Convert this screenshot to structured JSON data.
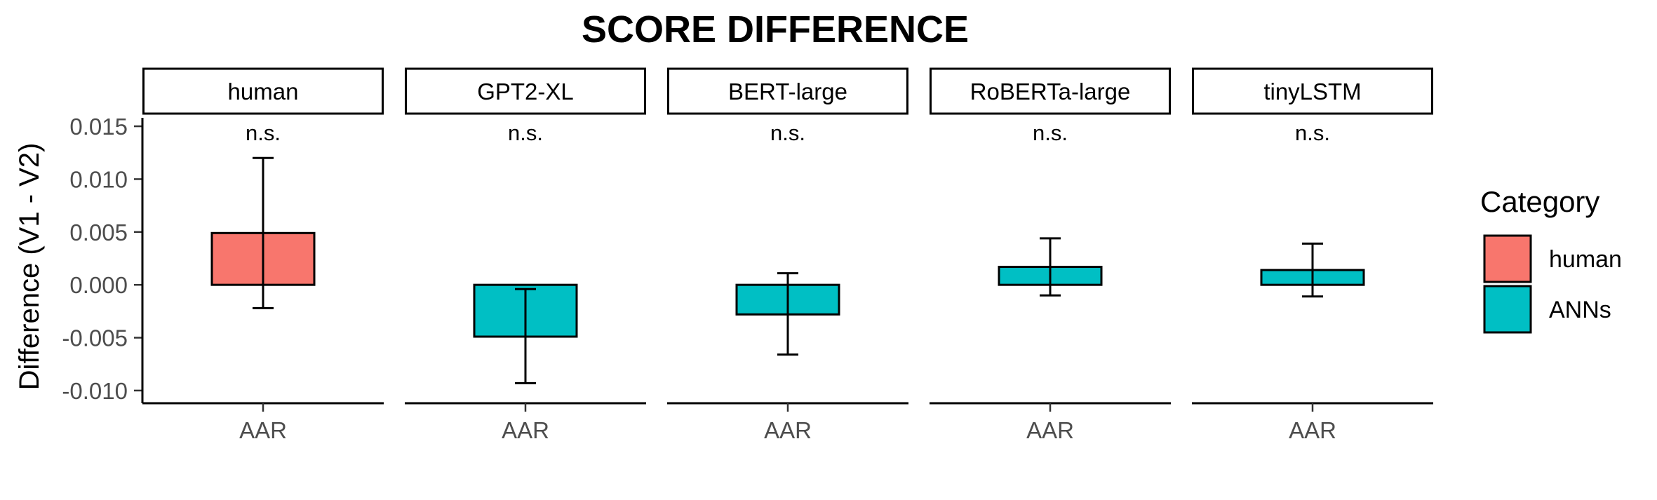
{
  "chart_data": {
    "type": "bar",
    "title": "SCORE DIFFERENCE",
    "ylabel": "Difference (V1 - V2)",
    "xlabel": "",
    "ylim": [
      -0.0112,
      0.0158
    ],
    "yticks": [
      0.015,
      0.01,
      0.005,
      0.0,
      -0.005,
      -0.01
    ],
    "ytick_labels": [
      "0.015",
      "0.010",
      "0.005",
      "0.000",
      "-0.005",
      "-0.010"
    ],
    "category_label": "AAR",
    "grid": false,
    "facets": [
      {
        "label": "human",
        "category": "AAR",
        "group": "human",
        "value": 0.0049,
        "error_low": -0.0022,
        "error_high": 0.012,
        "significance": "n.s."
      },
      {
        "label": "GPT2-XL",
        "category": "AAR",
        "group": "ANNs",
        "value": -0.0049,
        "error_low": -0.0093,
        "error_high": -0.0004,
        "significance": "n.s."
      },
      {
        "label": "BERT-large",
        "category": "AAR",
        "group": "ANNs",
        "value": -0.0028,
        "error_low": -0.0066,
        "error_high": 0.0011,
        "significance": "n.s."
      },
      {
        "label": "RoBERTa-large",
        "category": "AAR",
        "group": "ANNs",
        "value": 0.0017,
        "error_low": -0.001,
        "error_high": 0.0044,
        "significance": "n.s."
      },
      {
        "label": "tinyLSTM",
        "category": "AAR",
        "group": "ANNs",
        "value": 0.0014,
        "error_low": -0.0011,
        "error_high": 0.0039,
        "significance": "n.s."
      }
    ],
    "legend": {
      "title": "Category",
      "position": "right",
      "items": [
        {
          "label": "human",
          "color": "#F8766D"
        },
        {
          "label": "ANNs",
          "color": "#00BFC4"
        }
      ]
    }
  },
  "colors": {
    "human": "#F8766D",
    "ANNs": "#00BFC4",
    "axis": "#000000",
    "tick_text": "#4d4d4d"
  }
}
